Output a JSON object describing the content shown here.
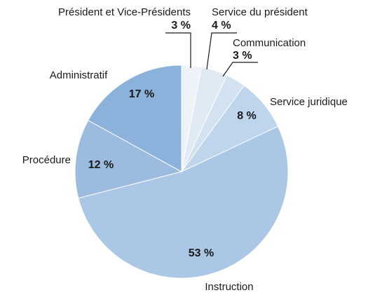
{
  "chart_data": {
    "type": "pie",
    "categories": [
      "Président et Vice-Présidents",
      "Service du président",
      "Communication",
      "Service juridique",
      "Instruction",
      "Procédure",
      "Administratif"
    ],
    "values": [
      3,
      4,
      3,
      8,
      53,
      12,
      17
    ],
    "value_labels": [
      "3 %",
      "4 %",
      "3 %",
      "8 %",
      "53 %",
      "12 %",
      "17 %"
    ],
    "colors": [
      "#eef3fa",
      "#e0eaf5",
      "#d3e2f1",
      "#bed5ec",
      "#aac7e5",
      "#9bbcdf",
      "#8ab2da"
    ]
  }
}
